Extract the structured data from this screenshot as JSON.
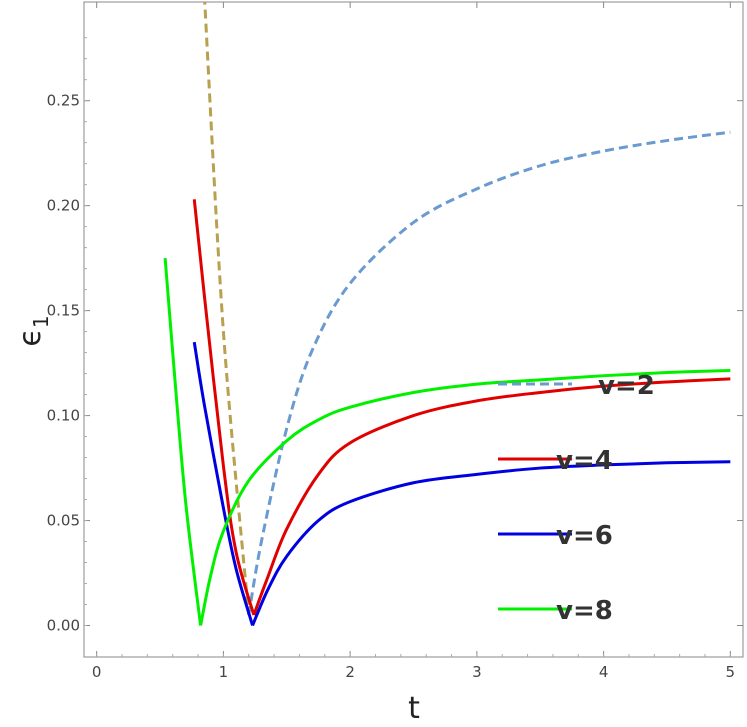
{
  "chart_data": {
    "type": "line",
    "xlabel": "t",
    "ylabel": "ϵ",
    "ylabel_sub": "1",
    "xlim": [
      -0.1,
      5.1
    ],
    "ylim": [
      -0.015,
      0.297
    ],
    "x_ticks": [
      0,
      1,
      2,
      3,
      4,
      5
    ],
    "x_tick_labels": [
      "0",
      "1",
      "2",
      "3",
      "4",
      "5"
    ],
    "y_ticks": [
      0.0,
      0.05,
      0.1,
      0.15,
      0.2,
      0.25
    ],
    "y_tick_labels": [
      "0.00",
      "0.05",
      "0.10",
      "0.15",
      "0.20",
      "0.25"
    ],
    "grid": false,
    "legend_position": "right",
    "series": [
      {
        "name": "v=2",
        "color_light": "#d0b020",
        "color_dark": "#4a7fd0",
        "dashed": true,
        "x": [
          0.85,
          1.0,
          1.2,
          1.3,
          1.5,
          1.7,
          2.0,
          2.5,
          3.0,
          3.5,
          4.0,
          4.5,
          5.0
        ],
        "y": [
          0.3,
          0.14,
          0.005,
          0.04,
          0.094,
          0.131,
          0.163,
          0.192,
          0.208,
          0.219,
          0.226,
          0.231,
          0.235
        ]
      },
      {
        "name": "v=4",
        "color": "#e00000",
        "dashed": false,
        "x": [
          0.77,
          0.85,
          1.0,
          1.1,
          1.24,
          1.35,
          1.5,
          1.75,
          2.0,
          2.5,
          3.0,
          3.5,
          4.0,
          4.5,
          5.0
        ],
        "y": [
          0.203,
          0.157,
          0.076,
          0.035,
          0.005,
          0.023,
          0.046,
          0.072,
          0.087,
          0.1,
          0.107,
          0.111,
          0.114,
          0.116,
          0.1175
        ]
      },
      {
        "name": "v=6",
        "color": "#0000e0",
        "dashed": false,
        "x": [
          0.77,
          0.85,
          1.0,
          1.1,
          1.23,
          1.35,
          1.5,
          1.75,
          2.0,
          2.5,
          3.0,
          3.5,
          4.0,
          4.5,
          5.0
        ],
        "y": [
          0.135,
          0.105,
          0.056,
          0.027,
          0.0,
          0.017,
          0.033,
          0.05,
          0.059,
          0.068,
          0.072,
          0.075,
          0.0765,
          0.0775,
          0.078
        ]
      },
      {
        "name": "v=8",
        "color": "#00f000",
        "dashed": false,
        "x": [
          0.54,
          0.6,
          0.7,
          0.82,
          0.9,
          1.0,
          1.2,
          1.5,
          1.75,
          2.0,
          2.5,
          3.0,
          3.5,
          4.0,
          4.5,
          5.0
        ],
        "y": [
          0.175,
          0.13,
          0.06,
          0.0,
          0.024,
          0.045,
          0.069,
          0.088,
          0.098,
          0.104,
          0.111,
          0.115,
          0.117,
          0.119,
          0.1205,
          0.1215
        ]
      }
    ]
  }
}
